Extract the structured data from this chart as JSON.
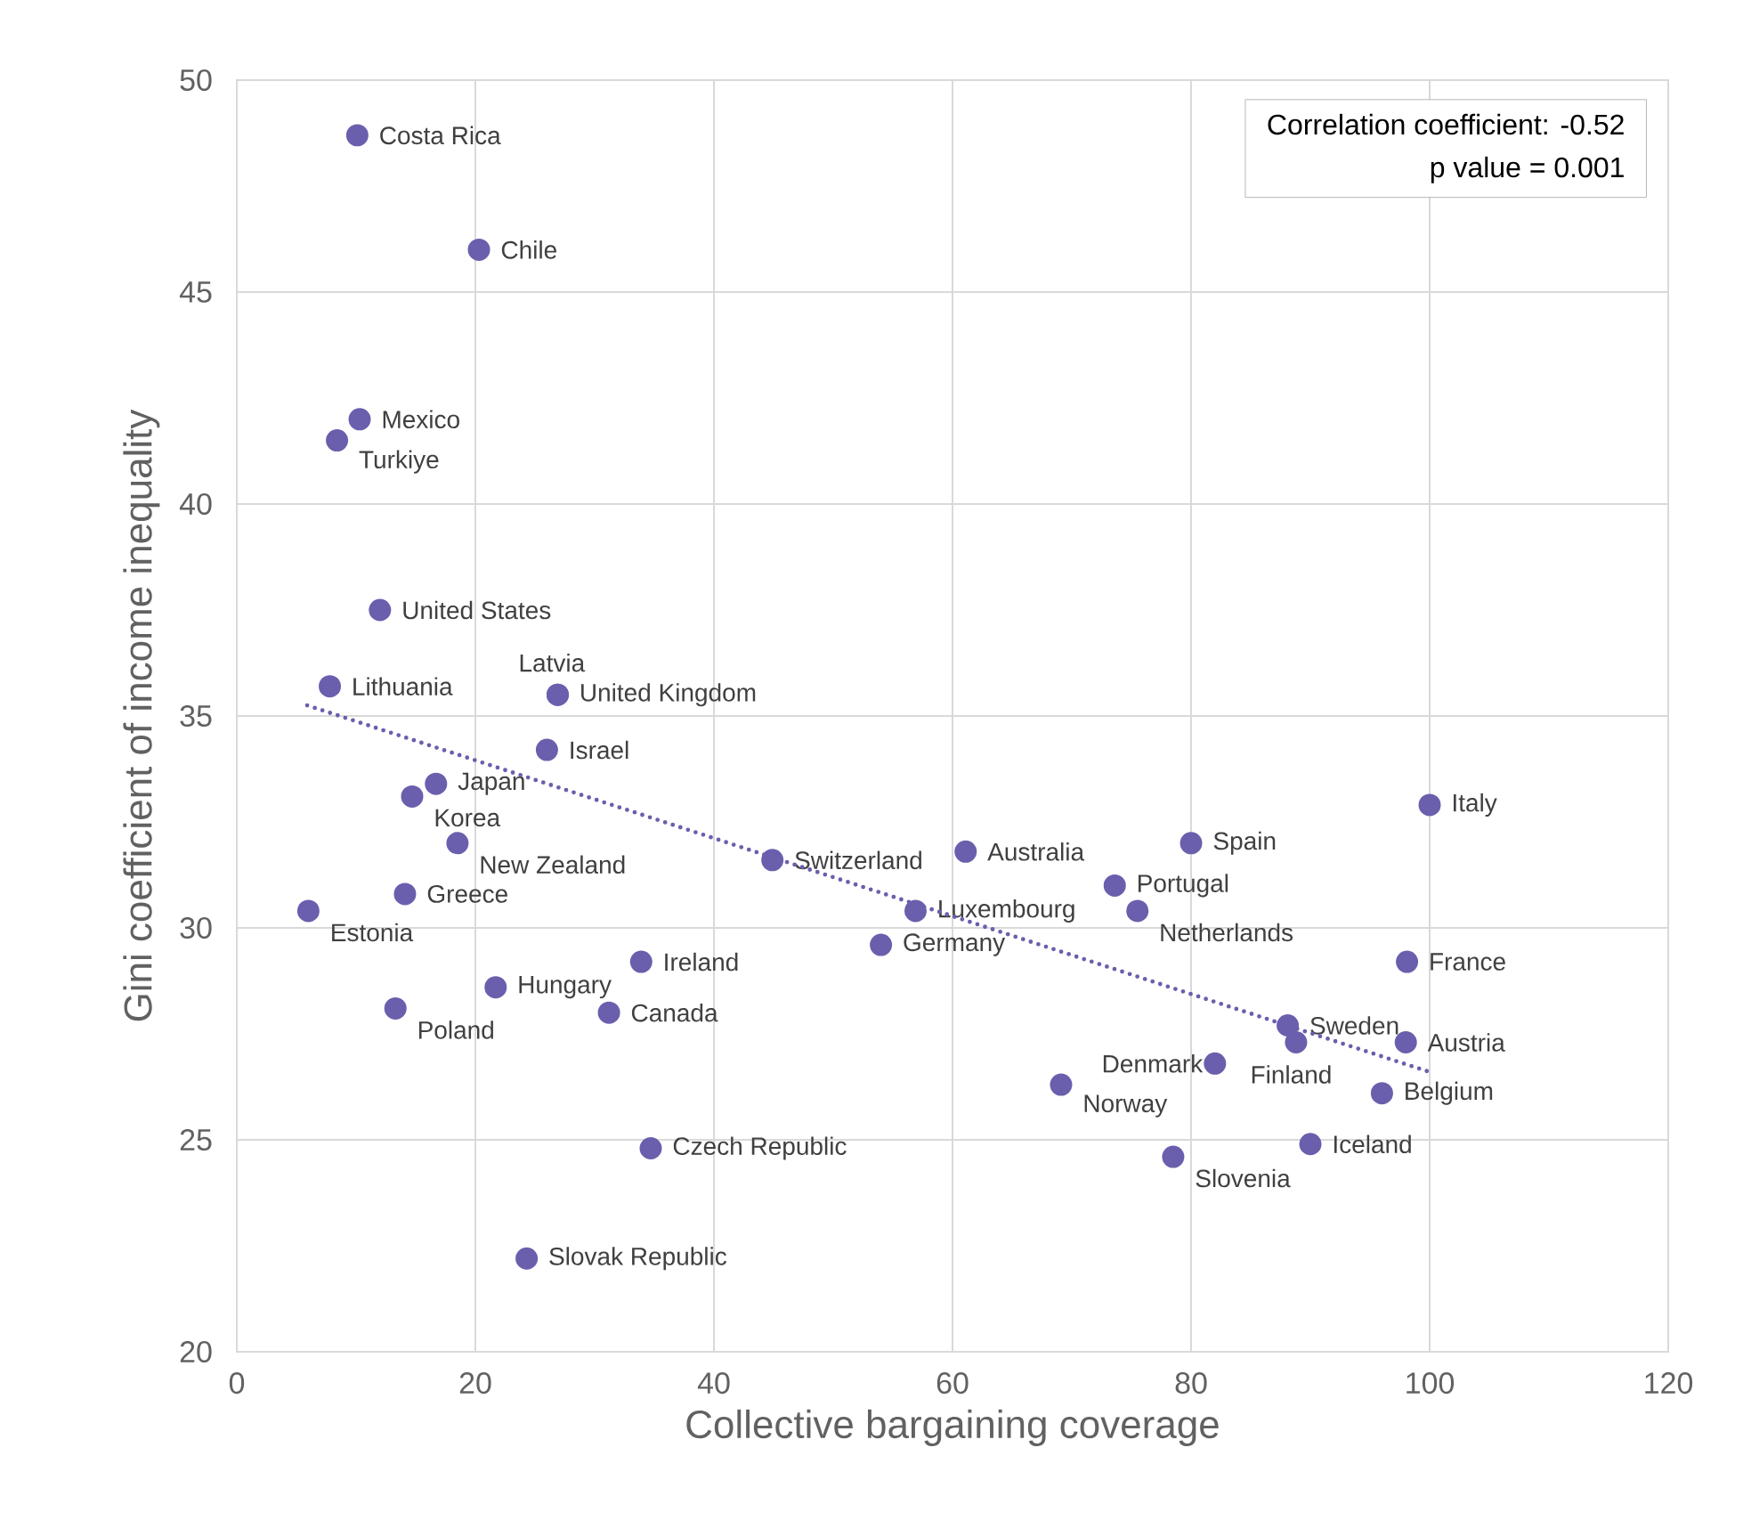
{
  "chart_data": {
    "type": "scatter",
    "xlabel": "Collective bargaining coverage",
    "ylabel": "Gini coefficient of income inequality",
    "xlim": [
      0,
      120
    ],
    "xticks": [
      0,
      20,
      40,
      60,
      80,
      100,
      120
    ],
    "ylim": [
      20,
      50
    ],
    "yticks": [
      20,
      25,
      30,
      35,
      40,
      45,
      50
    ],
    "grid": true,
    "marker": "circle",
    "annotations": [
      "Correlation coefficient: -0.52",
      "p value = 0.001"
    ],
    "series": [
      {
        "color": "#6a5fad",
        "x": [
          10.1,
          20.3,
          10.3,
          8.4,
          12.0,
          7.8,
          26.9,
          26.9,
          26.0,
          16.7,
          14.7,
          18.5,
          14.1,
          6.0,
          44.9,
          56.9,
          54.0,
          33.9,
          21.7,
          13.3,
          31.2,
          61.1,
          80.0,
          100,
          73.6,
          75.5,
          98.1,
          88.1,
          88.8,
          98.0,
          82.0,
          96.0,
          69.1,
          90.0,
          78.5,
          34.7,
          24.3
        ],
        "values": [
          48.7,
          46.0,
          42.0,
          41.5,
          37.5,
          35.7,
          35.5,
          35.5,
          34.2,
          33.4,
          33.1,
          32.0,
          30.8,
          30.4,
          31.6,
          30.4,
          29.6,
          29.2,
          28.6,
          28.1,
          28.0,
          31.8,
          32.0,
          32.9,
          31.0,
          30.4,
          29.2,
          27.7,
          27.3,
          27.3,
          26.8,
          26.1,
          26.3,
          24.9,
          24.6,
          24.8,
          22.2
        ],
        "value_labels": [
          "Costa Rica",
          "Chile",
          "Mexico",
          "Turkiye",
          "United States",
          "Lithuania",
          "United Kingdom",
          "Latvia",
          "Israel",
          "Japan",
          "Korea",
          "New Zealand",
          "Greece",
          "Estonia",
          "Switzerland",
          "Luxembourg",
          "Germany",
          "Ireland",
          "Hungary",
          "Poland",
          "Canada",
          "Australia",
          "Spain",
          "Italy",
          "Portugal",
          "Netherlands",
          "France",
          "Sweden",
          "Finland",
          "Austria",
          "Denmark",
          "Belgium",
          "Norway",
          "Iceland",
          "Slovenia",
          "Czech Republic",
          "Slovak Republic"
        ]
      },
      {
        "type": "line",
        "color": "#6a5fad",
        "line_style": "dotted",
        "marker": "none",
        "x": [
          5.9,
          100
        ],
        "values": [
          35.25,
          26.6
        ]
      }
    ]
  }
}
